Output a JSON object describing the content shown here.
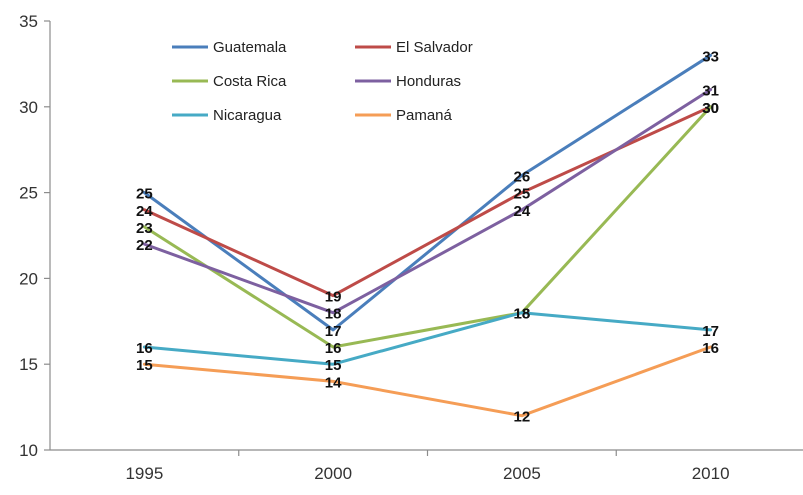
{
  "chart_data": {
    "type": "line",
    "title": "",
    "xlabel": "",
    "ylabel": "",
    "categories": [
      "1995",
      "2000",
      "2005",
      "2010"
    ],
    "ylim": [
      10,
      35
    ],
    "yticks": [
      "10",
      "15",
      "20",
      "25",
      "30",
      "35"
    ],
    "grid": false,
    "legend_position": "top-left",
    "series": [
      {
        "name": "Guatemala",
        "color": "#4a7ebb",
        "values": [
          25,
          17,
          26,
          33
        ]
      },
      {
        "name": "El Salvador",
        "color": "#be4b48",
        "values": [
          24,
          19,
          25,
          30
        ]
      },
      {
        "name": "Costa Rica",
        "color": "#98b954",
        "values": [
          23,
          16,
          18,
          30
        ]
      },
      {
        "name": "Honduras",
        "color": "#7d60a0",
        "values": [
          22,
          18,
          24,
          31
        ]
      },
      {
        "name": "Nicaragua",
        "color": "#46aac5",
        "values": [
          16,
          15,
          18,
          17
        ]
      },
      {
        "name": "Pamaná",
        "color": "#f59d56",
        "values": [
          15,
          14,
          12,
          16
        ]
      }
    ]
  }
}
